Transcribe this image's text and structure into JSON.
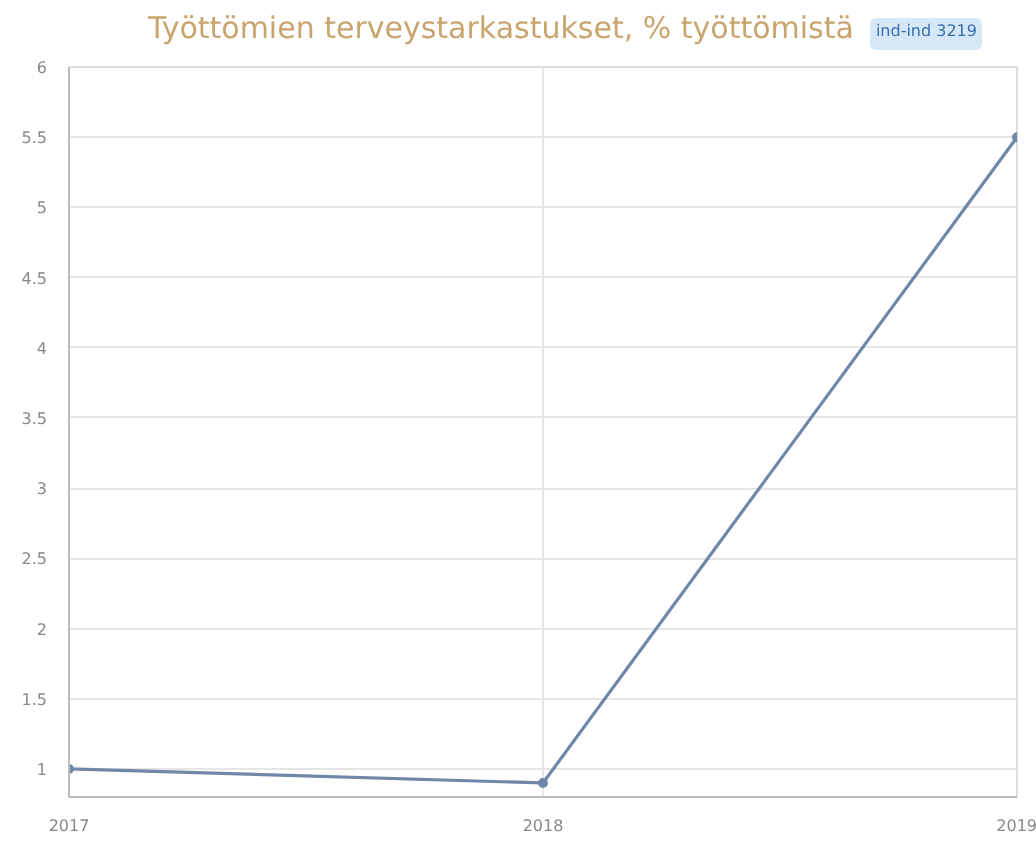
{
  "chart_data": {
    "type": "line",
    "title": "Työttömien terveystarkastukset, % työttömistä",
    "annotations": [
      "ind-ind 3219"
    ],
    "x": [
      2017,
      2018,
      2019
    ],
    "series": [
      {
        "color": "#6f87a8",
        "values": [
          1.0,
          0.9,
          5.5
        ]
      }
    ],
    "xlim": [
      2017,
      2019
    ],
    "xticks": [
      2017,
      2018,
      2019
    ],
    "ylim": [
      0.8,
      6
    ],
    "yticks": [
      1,
      1.5,
      2,
      2.5,
      3,
      3.5,
      4,
      4.5,
      5,
      5.5,
      6
    ],
    "grid": true,
    "marker": "circle",
    "line_style": "solid"
  }
}
